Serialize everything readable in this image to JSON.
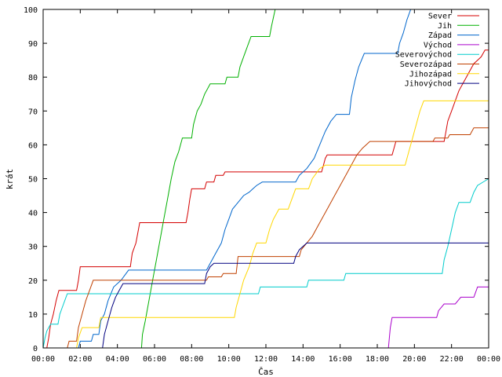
{
  "chart_data": {
    "type": "line",
    "xlabel": "Čas",
    "ylabel": "krát",
    "ylim": [
      0,
      100
    ],
    "xlim": [
      0,
      24
    ],
    "yticks": [
      0,
      10,
      20,
      30,
      40,
      50,
      60,
      70,
      80,
      90,
      100
    ],
    "xticks": [
      {
        "value": 0,
        "label": "00:00"
      },
      {
        "value": 2,
        "label": "02:00"
      },
      {
        "value": 4,
        "label": "04:00"
      },
      {
        "value": 6,
        "label": "06:00"
      },
      {
        "value": 8,
        "label": "08:00"
      },
      {
        "value": 10,
        "label": "10:00"
      },
      {
        "value": 12,
        "label": "12:00"
      },
      {
        "value": 14,
        "label": "14:00"
      },
      {
        "value": 16,
        "label": "16:00"
      },
      {
        "value": 18,
        "label": "18:00"
      },
      {
        "value": 20,
        "label": "20:00"
      },
      {
        "value": 22,
        "label": "22:00"
      },
      {
        "value": 24,
        "label": "00:00"
      }
    ],
    "grid": false,
    "legend_position": "top-right",
    "series": [
      {
        "name": "Sever",
        "color": "#d40000",
        "points": [
          [
            0.2,
            0
          ],
          [
            0.3,
            3
          ],
          [
            0.4,
            7
          ],
          [
            0.55,
            10
          ],
          [
            0.7,
            14
          ],
          [
            0.85,
            17
          ],
          [
            1.8,
            17
          ],
          [
            1.9,
            20
          ],
          [
            2.0,
            24
          ],
          [
            4.7,
            24
          ],
          [
            4.8,
            28
          ],
          [
            5.0,
            31
          ],
          [
            5.1,
            34
          ],
          [
            5.2,
            37
          ],
          [
            7.7,
            37
          ],
          [
            7.8,
            40
          ],
          [
            7.9,
            44
          ],
          [
            8.0,
            47
          ],
          [
            8.7,
            47
          ],
          [
            8.8,
            49
          ],
          [
            9.2,
            49
          ],
          [
            9.3,
            51
          ],
          [
            9.7,
            51
          ],
          [
            9.8,
            52
          ],
          [
            15.0,
            52
          ],
          [
            15.1,
            54
          ],
          [
            15.2,
            56
          ],
          [
            15.3,
            57
          ],
          [
            18.8,
            57
          ],
          [
            18.9,
            59
          ],
          [
            19.0,
            61
          ],
          [
            21.6,
            61
          ],
          [
            21.7,
            64
          ],
          [
            21.8,
            67
          ],
          [
            22.0,
            70
          ],
          [
            22.2,
            73
          ],
          [
            22.4,
            76
          ],
          [
            22.6,
            78
          ],
          [
            22.8,
            80
          ],
          [
            23.0,
            82
          ],
          [
            23.2,
            84
          ],
          [
            23.4,
            85
          ],
          [
            23.6,
            86
          ],
          [
            23.8,
            88
          ],
          [
            24.0,
            88
          ]
        ]
      },
      {
        "name": "Jih",
        "color": "#00b000",
        "points": [
          [
            0,
            0
          ],
          [
            5.3,
            0
          ],
          [
            5.35,
            4
          ],
          [
            5.5,
            8
          ],
          [
            5.7,
            14
          ],
          [
            5.9,
            20
          ],
          [
            6.1,
            26
          ],
          [
            6.3,
            32
          ],
          [
            6.5,
            38
          ],
          [
            6.7,
            44
          ],
          [
            6.9,
            50
          ],
          [
            7.1,
            55
          ],
          [
            7.3,
            58
          ],
          [
            7.5,
            62
          ],
          [
            8.0,
            62
          ],
          [
            8.1,
            66
          ],
          [
            8.3,
            70
          ],
          [
            8.5,
            72
          ],
          [
            8.7,
            75
          ],
          [
            9.0,
            78
          ],
          [
            9.8,
            78
          ],
          [
            9.9,
            80
          ],
          [
            10.5,
            80
          ],
          [
            10.6,
            83
          ],
          [
            10.8,
            86
          ],
          [
            11.0,
            89
          ],
          [
            11.2,
            92
          ],
          [
            12.2,
            92
          ],
          [
            12.3,
            95
          ],
          [
            12.5,
            100
          ],
          [
            12.6,
            100
          ]
        ]
      },
      {
        "name": "Západ",
        "color": "#0066cc",
        "points": [
          [
            0.2,
            0
          ],
          [
            1.9,
            0
          ],
          [
            2.0,
            2
          ],
          [
            2.6,
            2
          ],
          [
            2.7,
            4
          ],
          [
            3.0,
            4
          ],
          [
            3.1,
            8
          ],
          [
            3.3,
            10
          ],
          [
            3.5,
            14
          ],
          [
            3.8,
            18
          ],
          [
            4.2,
            20
          ],
          [
            4.6,
            23
          ],
          [
            8.8,
            23
          ],
          [
            9.0,
            25
          ],
          [
            9.3,
            28
          ],
          [
            9.6,
            31
          ],
          [
            9.8,
            35
          ],
          [
            10.0,
            38
          ],
          [
            10.2,
            41
          ],
          [
            10.5,
            43
          ],
          [
            10.8,
            45
          ],
          [
            11.1,
            46
          ],
          [
            11.3,
            47
          ],
          [
            11.5,
            48
          ],
          [
            11.8,
            49
          ],
          [
            13.6,
            49
          ],
          [
            13.8,
            51
          ],
          [
            14.2,
            53
          ],
          [
            14.6,
            56
          ],
          [
            14.9,
            60
          ],
          [
            15.2,
            64
          ],
          [
            15.5,
            67
          ],
          [
            15.8,
            69
          ],
          [
            16.5,
            69
          ],
          [
            16.6,
            74
          ],
          [
            16.8,
            79
          ],
          [
            17.0,
            83
          ],
          [
            17.3,
            87
          ],
          [
            19.1,
            87
          ],
          [
            19.2,
            90
          ],
          [
            19.4,
            93
          ],
          [
            19.6,
            97
          ],
          [
            19.8,
            100
          ],
          [
            20.0,
            100
          ]
        ]
      },
      {
        "name": "Východ",
        "color": "#aa00cc",
        "points": [
          [
            18.6,
            0
          ],
          [
            18.7,
            6
          ],
          [
            18.8,
            9
          ],
          [
            21.2,
            9
          ],
          [
            21.3,
            11
          ],
          [
            21.6,
            13
          ],
          [
            22.2,
            13
          ],
          [
            22.5,
            15
          ],
          [
            23.2,
            15
          ],
          [
            23.4,
            18
          ],
          [
            24.0,
            18
          ]
        ]
      },
      {
        "name": "Severovýchod",
        "color": "#00cccc",
        "points": [
          [
            0,
            0
          ],
          [
            0.1,
            3
          ],
          [
            0.2,
            5
          ],
          [
            0.4,
            7
          ],
          [
            0.8,
            7
          ],
          [
            0.9,
            10
          ],
          [
            1.1,
            13
          ],
          [
            1.3,
            16
          ],
          [
            11.6,
            16
          ],
          [
            11.7,
            18
          ],
          [
            14.2,
            18
          ],
          [
            14.3,
            20
          ],
          [
            16.2,
            20
          ],
          [
            16.3,
            22
          ],
          [
            21.5,
            22
          ],
          [
            21.6,
            26
          ],
          [
            21.8,
            30
          ],
          [
            22.0,
            35
          ],
          [
            22.2,
            40
          ],
          [
            22.4,
            43
          ],
          [
            23.0,
            43
          ],
          [
            23.2,
            46
          ],
          [
            23.4,
            48
          ],
          [
            24.0,
            50
          ]
        ]
      },
      {
        "name": "Severozápad",
        "color": "#c04000",
        "points": [
          [
            0.2,
            0
          ],
          [
            1.3,
            0
          ],
          [
            1.4,
            2
          ],
          [
            1.8,
            2
          ],
          [
            1.9,
            6
          ],
          [
            2.1,
            10
          ],
          [
            2.3,
            14
          ],
          [
            2.5,
            17
          ],
          [
            2.7,
            20
          ],
          [
            8.8,
            20
          ],
          [
            8.9,
            21
          ],
          [
            9.6,
            21
          ],
          [
            9.7,
            22
          ],
          [
            10.4,
            22
          ],
          [
            10.5,
            27
          ],
          [
            13.8,
            27
          ],
          [
            13.9,
            29
          ],
          [
            14.2,
            31
          ],
          [
            14.5,
            33
          ],
          [
            14.8,
            36
          ],
          [
            15.1,
            39
          ],
          [
            15.4,
            42
          ],
          [
            15.7,
            45
          ],
          [
            16.0,
            48
          ],
          [
            16.3,
            51
          ],
          [
            16.6,
            54
          ],
          [
            16.9,
            57
          ],
          [
            17.2,
            59
          ],
          [
            17.6,
            61
          ],
          [
            21.0,
            61
          ],
          [
            21.1,
            62
          ],
          [
            21.8,
            62
          ],
          [
            21.9,
            63
          ],
          [
            23.0,
            63
          ],
          [
            23.2,
            65
          ],
          [
            24.0,
            65
          ]
        ]
      },
      {
        "name": "Jihozápad",
        "color": "#ffd700",
        "points": [
          [
            1.8,
            0
          ],
          [
            1.9,
            3
          ],
          [
            2.1,
            6
          ],
          [
            3.0,
            6
          ],
          [
            3.1,
            9
          ],
          [
            10.3,
            9
          ],
          [
            10.4,
            12
          ],
          [
            10.6,
            16
          ],
          [
            10.8,
            20
          ],
          [
            11.1,
            24
          ],
          [
            11.3,
            28
          ],
          [
            11.5,
            31
          ],
          [
            12.0,
            31
          ],
          [
            12.2,
            35
          ],
          [
            12.4,
            38
          ],
          [
            12.7,
            41
          ],
          [
            13.2,
            41
          ],
          [
            13.4,
            44
          ],
          [
            13.6,
            47
          ],
          [
            14.3,
            47
          ],
          [
            14.5,
            50
          ],
          [
            14.9,
            53
          ],
          [
            15.2,
            54
          ],
          [
            19.5,
            54
          ],
          [
            19.7,
            58
          ],
          [
            19.9,
            62
          ],
          [
            20.1,
            66
          ],
          [
            20.3,
            70
          ],
          [
            20.5,
            73
          ],
          [
            24.0,
            73
          ]
        ]
      },
      {
        "name": "Jihovýchod",
        "color": "#000080",
        "points": [
          [
            3.2,
            0
          ],
          [
            3.3,
            4
          ],
          [
            3.5,
            8
          ],
          [
            3.7,
            12
          ],
          [
            3.9,
            15
          ],
          [
            4.1,
            17
          ],
          [
            4.3,
            19
          ],
          [
            8.7,
            19
          ],
          [
            8.8,
            22
          ],
          [
            9.0,
            24
          ],
          [
            9.2,
            25
          ],
          [
            13.5,
            25
          ],
          [
            13.6,
            27
          ],
          [
            13.8,
            29
          ],
          [
            14.0,
            30
          ],
          [
            14.2,
            31
          ],
          [
            24.0,
            31
          ]
        ]
      }
    ]
  }
}
